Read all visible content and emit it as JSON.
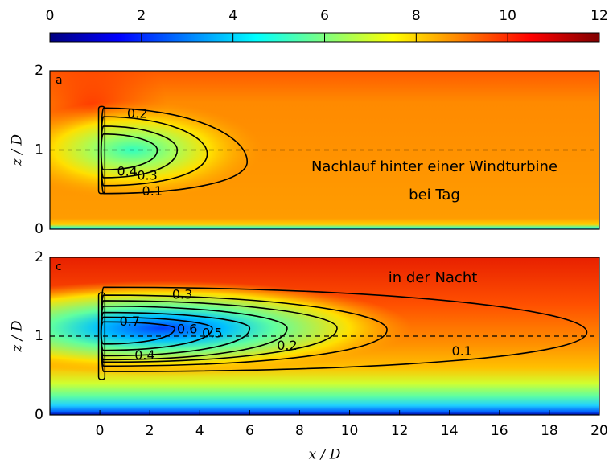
{
  "chart_data": [
    {
      "type": "colorbar",
      "xlim": [
        0,
        12
      ],
      "xticks": [
        0,
        2,
        4,
        6,
        8,
        10,
        12
      ],
      "colors": [
        "#00007f",
        "#0000ff",
        "#007fff",
        "#00ffff",
        "#7fff7f",
        "#ffff00",
        "#ff7f00",
        "#ff0000",
        "#7f0000"
      ]
    },
    {
      "type": "contour",
      "panel_label": "a",
      "annotations": [
        "Nachlauf hinter einer Windturbine",
        "bei Tag"
      ],
      "ylabel": "z / D",
      "xlim": [
        -2,
        20
      ],
      "ylim": [
        0,
        2
      ],
      "yticks": [
        0,
        1,
        2
      ],
      "reference_line": 1,
      "contour_levels": [
        0.1,
        0.2,
        0.3,
        0.4
      ],
      "contour_color": "#000000"
    },
    {
      "type": "contour",
      "panel_label": "c",
      "annotations": [
        "in der Nacht"
      ],
      "ylabel": "z / D",
      "xlabel": "x / D",
      "xlim": [
        -2,
        20
      ],
      "ylim": [
        0,
        2
      ],
      "yticks": [
        0,
        1,
        2
      ],
      "xticks": [
        0,
        2,
        4,
        6,
        8,
        10,
        12,
        14,
        16,
        18,
        20
      ],
      "reference_line": 1,
      "contour_levels": [
        0.1,
        0.2,
        0.3,
        0.4,
        0.5,
        0.6,
        0.7
      ],
      "contour_color": "#000000"
    }
  ]
}
